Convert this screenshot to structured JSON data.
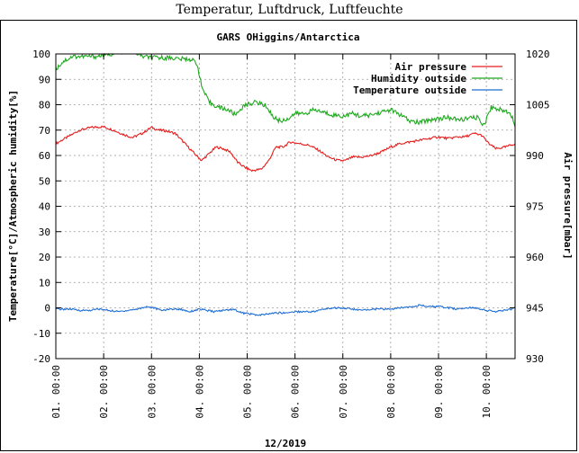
{
  "page_title": "Temperatur, Luftdruck, Luftfeuchte",
  "chart_data": {
    "type": "line",
    "title": "GARS OHiggins/Antarctica",
    "xlabel": "12/2019",
    "ylabel_left": "Temperature[°C]/Atmospheric humidity[%]",
    "ylabel_right": "Air pressure[mbar]",
    "x_unit": "days of December 2019",
    "xlim": [
      1,
      10.6
    ],
    "ylim_left": [
      -20,
      100
    ],
    "ylim_right": [
      930,
      1020
    ],
    "x_tick_labels": [
      "01. 00:00",
      "02. 00:00",
      "03. 00:00",
      "04. 00:00",
      "05. 00:00",
      "06. 00:00",
      "07. 00:00",
      "08. 00:00",
      "09. 00:00",
      "10. 00:00"
    ],
    "y_left_ticks": [
      -20,
      -10,
      0,
      10,
      20,
      30,
      40,
      50,
      60,
      70,
      80,
      90,
      100
    ],
    "y_right_ticks": [
      930,
      945,
      960,
      975,
      990,
      1005,
      1020
    ],
    "grid": true,
    "legend_position": "top-right",
    "series": [
      {
        "name": "Air pressure",
        "axis": "right",
        "color": "#e51e1e",
        "x": [
          1.0,
          1.25,
          1.5,
          1.75,
          2.0,
          2.2,
          2.4,
          2.6,
          2.8,
          3.0,
          3.15,
          3.3,
          3.5,
          3.7,
          3.9,
          4.05,
          4.2,
          4.35,
          4.5,
          4.65,
          4.8,
          4.95,
          5.1,
          5.3,
          5.45,
          5.6,
          5.75,
          5.9,
          6.1,
          6.3,
          6.5,
          6.7,
          6.9,
          7.05,
          7.2,
          7.4,
          7.6,
          7.8,
          8.0,
          8.2,
          8.4,
          8.6,
          8.8,
          9.0,
          9.2,
          9.4,
          9.55,
          9.75,
          9.9,
          10.05,
          10.2,
          10.4,
          10.6
        ],
        "values": [
          993.5,
          995.5,
          997.5,
          998.3,
          998.5,
          997.5,
          996.3,
          995.3,
          996.5,
          998.3,
          997.5,
          997.3,
          996.5,
          993.5,
          990.5,
          988.5,
          990.5,
          992.5,
          992.0,
          991.0,
          988.0,
          986.5,
          985.5,
          986.0,
          988.5,
          992.5,
          992.5,
          994.0,
          993.5,
          993.0,
          991.5,
          989.5,
          988.5,
          988.5,
          989.5,
          989.5,
          990.0,
          991.0,
          992.5,
          993.5,
          994.0,
          994.5,
          995.0,
          995.5,
          995.0,
          995.5,
          995.5,
          996.5,
          996.0,
          993.5,
          992.0,
          992.5,
          993.5
        ]
      },
      {
        "name": "Humidity outside",
        "axis": "left",
        "color": "#1ea81e",
        "x": [
          1.0,
          1.15,
          1.35,
          1.6,
          1.85,
          2.0,
          2.3,
          2.6,
          2.8,
          3.0,
          3.2,
          3.4,
          3.6,
          3.8,
          3.95,
          4.05,
          4.2,
          4.4,
          4.6,
          4.75,
          4.9,
          5.05,
          5.2,
          5.4,
          5.55,
          5.7,
          5.85,
          6.0,
          6.2,
          6.4,
          6.6,
          6.8,
          7.0,
          7.2,
          7.4,
          7.6,
          7.8,
          8.0,
          8.2,
          8.4,
          8.6,
          8.8,
          9.0,
          9.2,
          9.4,
          9.6,
          9.8,
          9.95,
          10.1,
          10.3,
          10.5,
          10.6
        ],
        "values": [
          94,
          97,
          99,
          99,
          99,
          99.5,
          100.5,
          101.5,
          99,
          98.5,
          98.5,
          98.5,
          98,
          98,
          96.5,
          87,
          81,
          79,
          78,
          76,
          79,
          80.5,
          81,
          79.5,
          75,
          73.5,
          74.5,
          76.5,
          76.5,
          78,
          77,
          76,
          75.5,
          76.5,
          75.5,
          76,
          77,
          78,
          76,
          73.5,
          73,
          74,
          74.5,
          75,
          74,
          74.5,
          75,
          72,
          79,
          78,
          77,
          72
        ]
      },
      {
        "name": "Temperature outside",
        "axis": "left",
        "color": "#1e6ed4",
        "x": [
          1.0,
          1.3,
          1.5,
          1.7,
          1.9,
          2.1,
          2.3,
          2.5,
          2.7,
          2.9,
          3.05,
          3.2,
          3.4,
          3.6,
          3.8,
          4.0,
          4.15,
          4.3,
          4.5,
          4.7,
          4.9,
          5.1,
          5.25,
          5.4,
          5.6,
          5.8,
          6.0,
          6.2,
          6.4,
          6.6,
          6.8,
          7.0,
          7.2,
          7.4,
          7.6,
          7.8,
          8.0,
          8.2,
          8.4,
          8.6,
          8.8,
          9.0,
          9.2,
          9.4,
          9.6,
          9.8,
          10.0,
          10.2,
          10.4,
          10.6
        ],
        "values": [
          -0.5,
          -0.5,
          -1.0,
          -1.0,
          -0.5,
          -1.0,
          -1.5,
          -1.0,
          -0.5,
          0.5,
          0.0,
          -1.0,
          -0.5,
          -0.5,
          -1.5,
          -0.5,
          -1.0,
          -1.5,
          -1.0,
          -0.5,
          -2.0,
          -2.5,
          -3.0,
          -2.5,
          -2.0,
          -2.0,
          -1.5,
          -1.5,
          -1.5,
          -0.5,
          0.0,
          0.0,
          -0.5,
          -1.0,
          -0.5,
          -0.5,
          -0.5,
          0.0,
          0.5,
          1.0,
          0.5,
          0.5,
          0.0,
          -0.5,
          0.0,
          0.0,
          -1.0,
          -1.5,
          -1.0,
          0.0
        ]
      }
    ]
  }
}
